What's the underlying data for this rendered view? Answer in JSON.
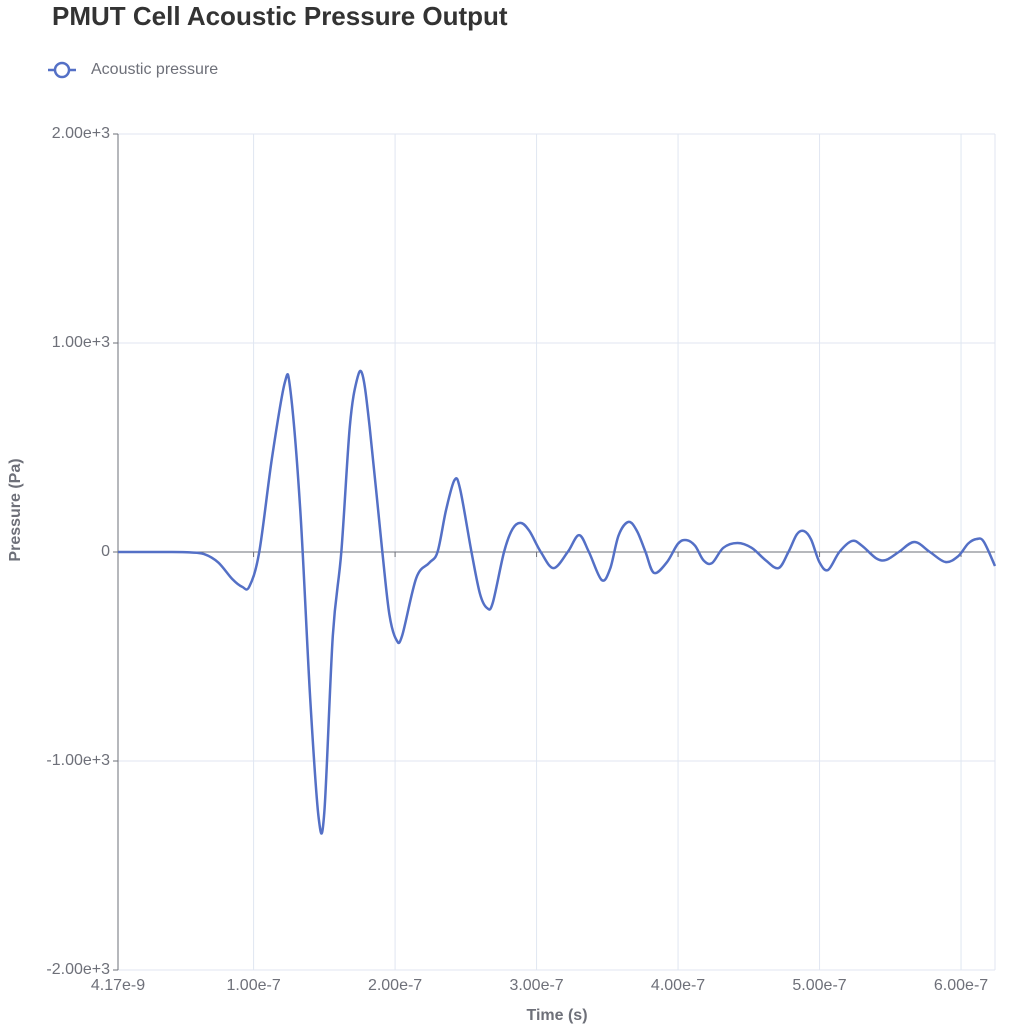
{
  "chart_data": {
    "type": "line",
    "title": "PMUT Cell Acoustic Pressure Output",
    "xlabel": "Time (s)",
    "ylabel": "Pressure (Pa)",
    "legend": "top-left",
    "grid": true,
    "xlim": [
      4.17e-09,
      6.24e-07
    ],
    "ylim": [
      -2000,
      2000
    ],
    "xticks": [
      {
        "value": 4.17e-09,
        "label": "4.17e-9"
      },
      {
        "value": 1e-07,
        "label": "1.00e-7"
      },
      {
        "value": 2e-07,
        "label": "2.00e-7"
      },
      {
        "value": 3e-07,
        "label": "3.00e-7"
      },
      {
        "value": 4e-07,
        "label": "4.00e-7"
      },
      {
        "value": 5e-07,
        "label": "5.00e-7"
      },
      {
        "value": 6e-07,
        "label": "6.00e-7"
      }
    ],
    "yticks": [
      {
        "value": -2000,
        "label": "-2.00e+3"
      },
      {
        "value": -1000,
        "label": "-1.00e+3"
      },
      0,
      {
        "value": 1000,
        "label": "1.00e+3"
      },
      {
        "value": 2000,
        "label": "2.00e+3"
      }
    ],
    "x": [
      4.17e-09,
      2e-08,
      4e-08,
      5.5e-08,
      6.5e-08,
      7.5e-08,
      8.5e-08,
      9.2e-08,
      9.7e-08,
      1.04e-07,
      1.13e-07,
      1.22e-07,
      1.26e-07,
      1.33e-07,
      1.4e-07,
      1.46e-07,
      1.5e-07,
      1.56e-07,
      1.62e-07,
      1.68e-07,
      1.73e-07,
      1.77e-07,
      1.82e-07,
      1.91e-07,
      1.96e-07,
      2.01e-07,
      2.05e-07,
      2.15e-07,
      2.24e-07,
      2.3e-07,
      2.36e-07,
      2.42e-07,
      2.46e-07,
      2.54e-07,
      2.6e-07,
      2.65e-07,
      2.69e-07,
      2.77e-07,
      2.83e-07,
      2.89e-07,
      2.95e-07,
      3.03e-07,
      3.12e-07,
      3.22e-07,
      3.3e-07,
      3.37e-07,
      3.46e-07,
      3.52e-07,
      3.58e-07,
      3.65e-07,
      3.71e-07,
      3.77e-07,
      3.83e-07,
      3.92e-07,
      4e-07,
      4.06e-07,
      4.12e-07,
      4.18e-07,
      4.24e-07,
      4.32e-07,
      4.42e-07,
      4.52e-07,
      4.62e-07,
      4.71e-07,
      4.78e-07,
      4.84e-07,
      4.89e-07,
      4.94e-07,
      5e-07,
      5.06e-07,
      5.14e-07,
      5.23e-07,
      5.3e-07,
      5.4e-07,
      5.47e-07,
      5.56e-07,
      5.67e-07,
      5.78e-07,
      5.89e-07,
      5.98e-07,
      6.05e-07,
      6.11e-07,
      6.16e-07,
      6.24e-07
    ],
    "series": [
      {
        "name": "Acoustic pressure",
        "color": "#5470c6",
        "values": [
          0,
          0,
          0,
          -2,
          -10,
          -50,
          -130,
          -167,
          -165,
          0,
          450,
          809,
          775,
          200,
          -700,
          -1273,
          -1244,
          -400,
          0,
          600,
          823,
          847,
          600,
          0,
          -300,
          -421,
          -400,
          -124,
          -53,
          0,
          200,
          344,
          300,
          0,
          -200,
          -268,
          -244,
          0,
          110,
          139,
          100,
          0,
          -77,
          0,
          81,
          0,
          -134,
          -80,
          80,
          144,
          100,
          0,
          -100,
          -50,
          40,
          57,
          30,
          -40,
          -53,
          20,
          43,
          20,
          -40,
          -77,
          0,
          85,
          100,
          60,
          -50,
          -86,
          0,
          53,
          30,
          -30,
          -38,
          0,
          48,
          0,
          -48,
          -20,
          40,
          62,
          50,
          -67
        ]
      }
    ]
  }
}
